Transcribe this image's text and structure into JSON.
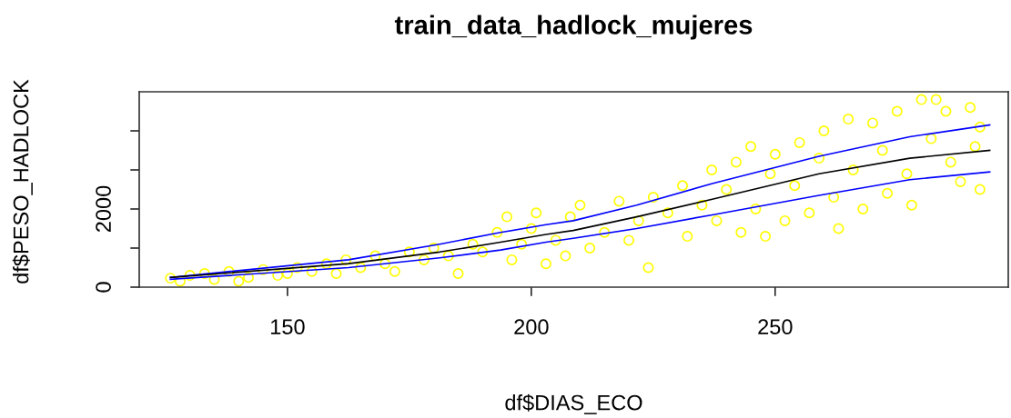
{
  "chart_data": {
    "type": "scatter",
    "title": "train_data_hadlock_mujeres",
    "xlabel": "df$DIAS_ECO",
    "ylabel": "df$PESO_HADLOCK",
    "xlim": [
      119.6,
      297.8
    ],
    "ylim": [
      0,
      5000
    ],
    "xticks": [
      150,
      200,
      250
    ],
    "yticks": [
      0,
      {
        "value": 1000,
        "label": null
      },
      2000,
      {
        "value": 3000,
        "label": null
      },
      {
        "value": 4000,
        "label": null
      }
    ],
    "grid": false,
    "series": [
      {
        "marker": "circle",
        "color": "#ffff00",
        "x": [
          126,
          128,
          130,
          133,
          135,
          138,
          140,
          142,
          145,
          148,
          150,
          152,
          155,
          158,
          160,
          162,
          165,
          168,
          170,
          172,
          175,
          178,
          180,
          183,
          185,
          188,
          190,
          193,
          195,
          196,
          198,
          200,
          201,
          203,
          205,
          207,
          208,
          210,
          212,
          215,
          218,
          220,
          222,
          224,
          225,
          228,
          231,
          232,
          235,
          237,
          238,
          240,
          242,
          243,
          245,
          246,
          248,
          249,
          250,
          252,
          254,
          255,
          257,
          259,
          260,
          262,
          263,
          265,
          266,
          268,
          270,
          272,
          273,
          275,
          277,
          278,
          280,
          282,
          283,
          285,
          286,
          288,
          290,
          291,
          292,
          292
        ],
        "values": [
          230,
          150,
          300,
          350,
          200,
          400,
          150,
          250,
          450,
          300,
          350,
          500,
          400,
          600,
          350,
          700,
          500,
          800,
          600,
          400,
          900,
          700,
          1000,
          800,
          350,
          1100,
          900,
          1400,
          1800,
          700,
          1100,
          1500,
          1900,
          600,
          1200,
          800,
          1800,
          2100,
          1000,
          1400,
          2200,
          1200,
          1700,
          500,
          2300,
          1900,
          2600,
          1300,
          2100,
          3000,
          1700,
          2500,
          3200,
          1400,
          3600,
          2000,
          1300,
          2900,
          3400,
          1700,
          2600,
          3700,
          1900,
          3300,
          4000,
          2300,
          1500,
          4300,
          3000,
          2000,
          4200,
          3500,
          2400,
          4500,
          2900,
          2100,
          4800,
          3800,
          4800,
          4500,
          3200,
          2700,
          4600,
          3600,
          2500,
          4100
        ]
      },
      {
        "type": "line",
        "marker": "none",
        "color": "#0000ff",
        "x": [
          126,
          162.5,
          181.2,
          193.7,
          203,
          208.6,
          221.6,
          237.1,
          259,
          277.6,
          294
        ],
        "values": [
          250,
          700,
          1100,
          1400,
          1600,
          1700,
          2100,
          2650,
          3350,
          3850,
          4150
        ]
      },
      {
        "type": "line",
        "marker": "none",
        "color": "#000000",
        "x": [
          126,
          162.5,
          181.2,
          193.7,
          203,
          208.6,
          221.6,
          237.1,
          259,
          277.6,
          294
        ],
        "values": [
          250,
          600,
          900,
          1150,
          1350,
          1450,
          1800,
          2250,
          2900,
          3300,
          3500
        ]
      },
      {
        "type": "line",
        "marker": "none",
        "color": "#0000ff",
        "x": [
          126,
          162.5,
          181.2,
          193.7,
          203,
          208.6,
          221.6,
          237.1,
          259,
          277.6,
          294
        ],
        "values": [
          200,
          500,
          750,
          950,
          1150,
          1250,
          1500,
          1850,
          2350,
          2750,
          2950
        ]
      }
    ]
  }
}
